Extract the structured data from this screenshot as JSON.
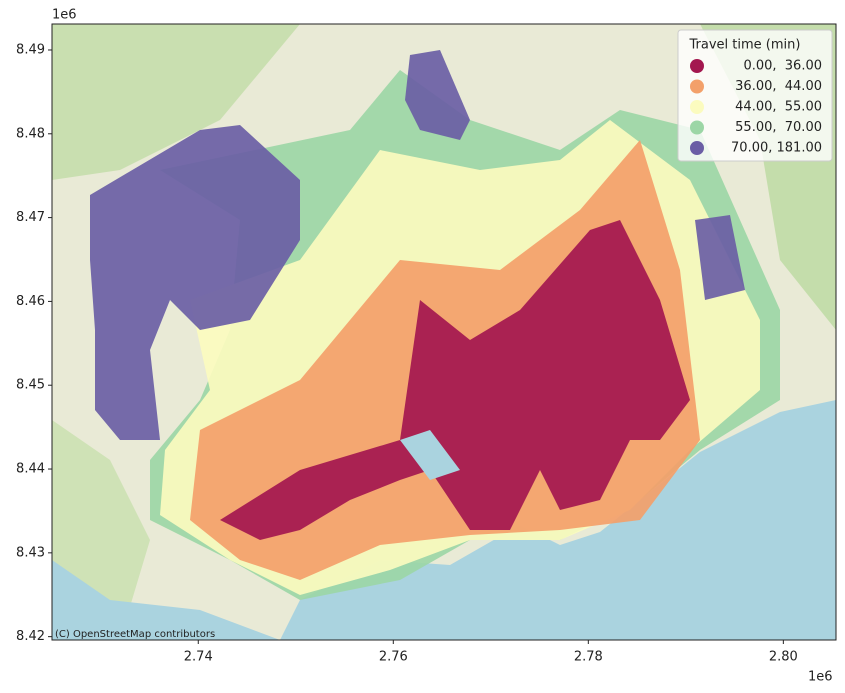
{
  "chart_data": {
    "type": "map",
    "xlim": [
      2725000,
      2805400
    ],
    "ylim": [
      8419600,
      8493100
    ],
    "xticks": [
      {
        "value": 2740000,
        "label": "2.74"
      },
      {
        "value": 2760000,
        "label": "2.76"
      },
      {
        "value": 2780000,
        "label": "2.78"
      },
      {
        "value": 2800000,
        "label": "2.80"
      }
    ],
    "yticks": [
      {
        "value": 8420000,
        "label": "8.42"
      },
      {
        "value": 8430000,
        "label": "8.43"
      },
      {
        "value": 8440000,
        "label": "8.44"
      },
      {
        "value": 8450000,
        "label": "8.45"
      },
      {
        "value": 8460000,
        "label": "8.46"
      },
      {
        "value": 8470000,
        "label": "8.47"
      },
      {
        "value": 8480000,
        "label": "8.48"
      },
      {
        "value": 8490000,
        "label": "8.49"
      }
    ],
    "x_offset_label": "1e6",
    "y_offset_label": "1e6",
    "attribution": "(C) OpenStreetMap contributors",
    "legend": {
      "title": "Travel time (min)",
      "position": "upper right",
      "entries": [
        {
          "label": "0.00,  36.00",
          "color": "#a3174f"
        },
        {
          "label": "36.00,  44.00",
          "color": "#f3a06a"
        },
        {
          "label": "44.00,  55.00",
          "color": "#fbfbbf"
        },
        {
          "label": "55.00,  70.00",
          "color": "#9cd6a6"
        },
        {
          "label": "70.00, 181.00",
          "color": "#6a5ea5"
        }
      ]
    }
  }
}
